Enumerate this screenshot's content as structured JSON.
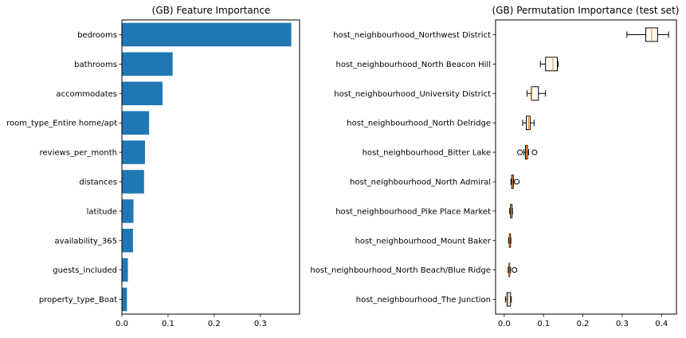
{
  "chart_data": [
    {
      "type": "bar",
      "orientation": "horizontal",
      "title": "(GB) Feature Importance",
      "categories": [
        "bedrooms",
        "bathrooms",
        "accommodates",
        "room_type_Entire home/apt",
        "reviews_per_month",
        "distances",
        "latitude",
        "availability_365",
        "guests_included",
        "property_type_Boat"
      ],
      "values": [
        0.367,
        0.11,
        0.088,
        0.059,
        0.05,
        0.048,
        0.025,
        0.024,
        0.013,
        0.011
      ],
      "xlim": [
        0,
        0.385
      ],
      "xticks": [
        "0.0",
        "0.1",
        "0.2",
        "0.3"
      ],
      "xtick_values": [
        0,
        0.1,
        0.2,
        0.3
      ],
      "bar_color": "#1f77b4",
      "grid": false
    },
    {
      "type": "boxplot",
      "orientation": "horizontal",
      "title": "(GB) Permutation Importance (test set)",
      "categories": [
        "host_neighbourhood_Northwest District",
        "host_neighbourhood_North Beacon Hill",
        "host_neighbourhood_University District",
        "host_neighbourhood_North Delridge",
        "host_neighbourhood_Bitter Lake",
        "host_neighbourhood_North Admiral",
        "host_neighbourhood_Pike Place Market",
        "host_neighbourhood_Mount Baker",
        "host_neighbourhood_North Beach/Blue Ridge",
        "host_neighbourhood_The Junction"
      ],
      "boxes": [
        {
          "whislo": 0.312,
          "q1": 0.36,
          "med": 0.375,
          "q3": 0.39,
          "whishi": 0.418,
          "fliers": []
        },
        {
          "whislo": 0.092,
          "q1": 0.105,
          "med": 0.124,
          "q3": 0.135,
          "whishi": 0.137,
          "fliers": []
        },
        {
          "whislo": 0.058,
          "q1": 0.069,
          "med": 0.07,
          "q3": 0.087,
          "whishi": 0.105,
          "fliers": []
        },
        {
          "whislo": 0.047,
          "q1": 0.056,
          "med": 0.062,
          "q3": 0.066,
          "whishi": 0.076,
          "fliers": []
        },
        {
          "whislo": 0.05,
          "q1": 0.054,
          "med": 0.056,
          "q3": 0.059,
          "whishi": 0.062,
          "fliers": [
            0.04,
            0.077
          ]
        },
        {
          "whislo": 0.017,
          "q1": 0.019,
          "med": 0.021,
          "q3": 0.023,
          "whishi": 0.024,
          "fliers": [
            0.032
          ]
        },
        {
          "whislo": 0.014,
          "q1": 0.016,
          "med": 0.018,
          "q3": 0.02,
          "whishi": 0.021,
          "fliers": []
        },
        {
          "whislo": 0.011,
          "q1": 0.013,
          "med": 0.014,
          "q3": 0.016,
          "whishi": 0.017,
          "fliers": []
        },
        {
          "whislo": 0.01,
          "q1": 0.012,
          "med": 0.013,
          "q3": 0.014,
          "whishi": 0.016,
          "fliers": [
            0.026
          ]
        },
        {
          "whislo": 0.003,
          "q1": 0.007,
          "med": 0.01,
          "q3": 0.016,
          "whishi": 0.018,
          "fliers": []
        }
      ],
      "xlim": [
        -0.022,
        0.438
      ],
      "xticks": [
        "0.0",
        "0.1",
        "0.2",
        "0.3",
        "0.4"
      ],
      "xtick_values": [
        0,
        0.1,
        0.2,
        0.3,
        0.4
      ],
      "box_color": "#000000",
      "median_color": "#ff7f0e",
      "grid": false
    }
  ]
}
